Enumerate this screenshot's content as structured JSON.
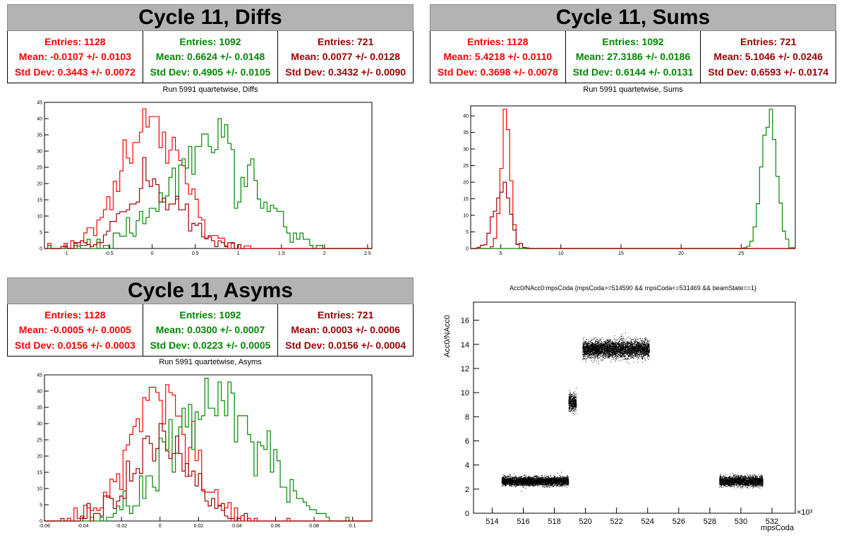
{
  "colors": {
    "red": "#ff0000",
    "green": "#008800",
    "darkred": "#990000",
    "black": "#000000",
    "title_bg": "#b3b3b3"
  },
  "panels": {
    "diffs": {
      "title": "Cycle 11, Diffs",
      "subtitle": "Run 5991 quartetwise, Diffs",
      "stats": [
        {
          "entries": "Entries: 1128",
          "mean": "Mean: -0.0107 +/- 0.0103",
          "std": "Std Dev: 0.3443 +/- 0.0072"
        },
        {
          "entries": "Entries: 1092",
          "mean": "Mean: 0.6624 +/- 0.0148",
          "std": "Std Dev: 0.4905 +/- 0.0105"
        },
        {
          "entries": "Entries: 721",
          "mean": "Mean: 0.0077 +/- 0.0128",
          "std": "Std Dev: 0.3432 +/- 0.0090"
        }
      ]
    },
    "sums": {
      "title": "Cycle 11, Sums",
      "subtitle": "Run 5991 quartetwise, Sums",
      "stats": [
        {
          "entries": "Entries: 1128",
          "mean": "Mean: 5.4218 +/- 0.0110",
          "std": "Std Dev: 0.3698 +/- 0.0078"
        },
        {
          "entries": "Entries: 1092",
          "mean": "Mean: 27.3186 +/- 0.0186",
          "std": "Std Dev: 0.6144 +/- 0.0131"
        },
        {
          "entries": "Entries: 721",
          "mean": "Mean: 5.1046 +/- 0.0246",
          "std": "Std Dev: 0.6593 +/- 0.0174"
        }
      ]
    },
    "asyms": {
      "title": "Cycle 11, Asyms",
      "subtitle": "Run 5991 quartetwise, Asyms",
      "stats": [
        {
          "entries": "Entries: 1128",
          "mean": "Mean: -0.0005 +/- 0.0005",
          "std": "Std Dev: 0.0156 +/- 0.0003"
        },
        {
          "entries": "Entries: 1092",
          "mean": "Mean: 0.0300 +/- 0.0007",
          "std": "Std Dev: 0.0223 +/- 0.0005"
        },
        {
          "entries": "Entries: 721",
          "mean": "Mean: 0.0003 +/- 0.0006",
          "std": "Std Dev: 0.0156 +/- 0.0004"
        }
      ]
    },
    "scatter": {
      "title": "Acc0/NAcc0:mpsCoda {mpsCoda>=514590 && mpsCoda<=531469 && beamState==1}"
    }
  },
  "chart_data": [
    {
      "type": "histogram",
      "title": "Run 5991 quartetwise, Diffs",
      "xlim": [
        -1.25,
        2.55
      ],
      "ylim": [
        0,
        45
      ],
      "xticks": [
        -1,
        -0.5,
        0,
        0.5,
        1,
        1.5,
        2,
        2.5
      ],
      "xtick_labels": [
        "-1",
        "-0.5",
        "0",
        "0.5",
        "1",
        "1.5",
        "2",
        "2.5"
      ],
      "yticks": [
        0,
        5,
        10,
        15,
        20,
        25,
        30,
        35,
        40,
        45
      ],
      "series": [
        {
          "color": "red",
          "mean": -0.0107,
          "std": 0.3443,
          "entries": 1128,
          "peak": 43
        },
        {
          "color": "green",
          "mean": 0.6624,
          "std": 0.4905,
          "entries": 1092,
          "peak": 40
        },
        {
          "color": "darkred",
          "mean": 0.0077,
          "std": 0.3432,
          "entries": 721,
          "peak": 28
        }
      ]
    },
    {
      "type": "histogram",
      "title": "Run 5991 quartetwise, Sums",
      "xlim": [
        2.5,
        29.5
      ],
      "ylim": [
        0,
        43
      ],
      "xticks": [
        5,
        10,
        15,
        20,
        25
      ],
      "xtick_labels": [
        "5",
        "10",
        "15",
        "20",
        "25"
      ],
      "yticks": [
        0,
        5,
        10,
        15,
        20,
        25,
        30,
        35,
        40
      ],
      "series": [
        {
          "color": "red",
          "mean": 5.4218,
          "std": 0.3698,
          "entries": 1128,
          "peak": 42
        },
        {
          "color": "green",
          "mean": 27.3186,
          "std": 0.6144,
          "entries": 1092,
          "peak": 42
        },
        {
          "color": "darkred",
          "mean": 5.1046,
          "std": 0.6593,
          "entries": 721,
          "peak": 20
        }
      ]
    },
    {
      "type": "histogram",
      "title": "Run 5991 quartetwise, Asyms",
      "xlim": [
        -0.06,
        0.11
      ],
      "ylim": [
        0,
        45
      ],
      "xticks": [
        -0.06,
        -0.04,
        -0.02,
        0,
        0.02,
        0.04,
        0.06,
        0.08,
        0.1
      ],
      "xtick_labels": [
        "-0.06",
        "-0.04",
        "-0.02",
        "0",
        "0.02",
        "0.04",
        "0.06",
        "0.08",
        "0.1"
      ],
      "yticks": [
        0,
        5,
        10,
        15,
        20,
        25,
        30,
        35,
        40,
        45
      ],
      "series": [
        {
          "color": "red",
          "mean": -0.0005,
          "std": 0.0156,
          "entries": 1128,
          "peak": 42
        },
        {
          "color": "green",
          "mean": 0.03,
          "std": 0.0223,
          "entries": 1092,
          "peak": 44
        },
        {
          "color": "darkred",
          "mean": 0.0003,
          "std": 0.0156,
          "entries": 721,
          "peak": 30
        }
      ]
    },
    {
      "type": "scatter",
      "title": "Acc0/NAcc0:mpsCoda {mpsCoda>=514590 && mpsCoda<=531469 && beamState==1}",
      "xlabel": "mpsCoda",
      "ylabel": "Acc0/NAcc0",
      "x_multiplier": "×10³",
      "xlim": [
        512.8,
        533.5
      ],
      "ylim": [
        0,
        17.5
      ],
      "xticks": [
        514,
        516,
        518,
        520,
        522,
        524,
        526,
        528,
        530,
        532
      ],
      "xtick_labels": [
        "514",
        "516",
        "518",
        "520",
        "522",
        "524",
        "526",
        "528",
        "530",
        "532"
      ],
      "yticks": [
        0,
        2,
        4,
        6,
        8,
        10,
        12,
        14,
        16
      ],
      "ytick_labels": [
        "0",
        "2",
        "4",
        "6",
        "8",
        "10",
        "12",
        "14",
        "16"
      ],
      "clusters": [
        {
          "x": [
            514.6,
            518.9
          ],
          "y_center": 2.65,
          "y_spread": 0.35
        },
        {
          "x": [
            518.9,
            519.4
          ],
          "y_center": 9.2,
          "y_spread": 0.7
        },
        {
          "x": [
            519.8,
            524.1
          ],
          "y_center": 13.6,
          "y_spread": 0.7
        },
        {
          "x": [
            528.6,
            531.4
          ],
          "y_center": 2.65,
          "y_spread": 0.4
        }
      ]
    }
  ]
}
